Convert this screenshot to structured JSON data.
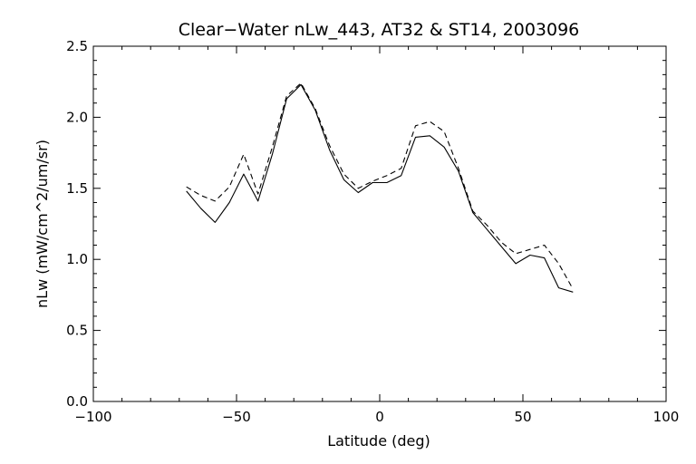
{
  "chart_data": {
    "type": "line",
    "title": "Clear−Water nLw_443, AT32 & ST14, 2003096",
    "xlabel": "Latitude (deg)",
    "ylabel": "nLw (mW/cm^2/um/sr)",
    "xlim": [
      -100,
      100
    ],
    "ylim": [
      0.0,
      2.5
    ],
    "xticks": [
      -100,
      -50,
      0,
      50,
      100
    ],
    "xtick_labels": [
      "−100",
      "−50",
      "0",
      "50",
      "100"
    ],
    "yticks": [
      0.0,
      0.5,
      1.0,
      1.5,
      2.0,
      2.5
    ],
    "ytick_labels": [
      "0.0",
      "0.5",
      "1.0",
      "1.5",
      "2.0",
      "2.5"
    ],
    "grid": false,
    "series": [
      {
        "style": "solid",
        "x": [
          -67.5,
          -62.5,
          -57.5,
          -52.5,
          -47.5,
          -42.5,
          -37.5,
          -32.5,
          -27.5,
          -22.5,
          -17.5,
          -12.5,
          -7.5,
          -2.5,
          2.5,
          7.5,
          12.5,
          17.5,
          22.5,
          27.5,
          32.5,
          37.5,
          42.5,
          47.5,
          52.5,
          57.5,
          62.5,
          67.5
        ],
        "values": [
          1.48,
          1.36,
          1.26,
          1.4,
          1.6,
          1.41,
          1.74,
          2.13,
          2.23,
          2.05,
          1.77,
          1.56,
          1.47,
          1.54,
          1.54,
          1.59,
          1.86,
          1.87,
          1.79,
          1.62,
          1.33,
          1.21,
          1.09,
          0.97,
          1.03,
          1.01,
          0.8,
          0.77
        ]
      },
      {
        "style": "dashed",
        "x": [
          -67.5,
          -62.5,
          -57.5,
          -52.5,
          -47.5,
          -42.5,
          -37.5,
          -32.5,
          -27.5,
          -22.5,
          -17.5,
          -12.5,
          -7.5,
          -2.5,
          2.5,
          7.5,
          12.5,
          17.5,
          22.5,
          27.5,
          32.5,
          37.5,
          42.5,
          47.5,
          52.5,
          57.5,
          62.5,
          67.5
        ],
        "values": [
          1.51,
          1.45,
          1.41,
          1.51,
          1.74,
          1.46,
          1.79,
          2.15,
          2.24,
          2.06,
          1.8,
          1.6,
          1.5,
          1.55,
          1.59,
          1.64,
          1.94,
          1.97,
          1.9,
          1.64,
          1.34,
          1.24,
          1.12,
          1.04,
          1.07,
          1.1,
          0.97,
          0.79
        ]
      }
    ]
  }
}
